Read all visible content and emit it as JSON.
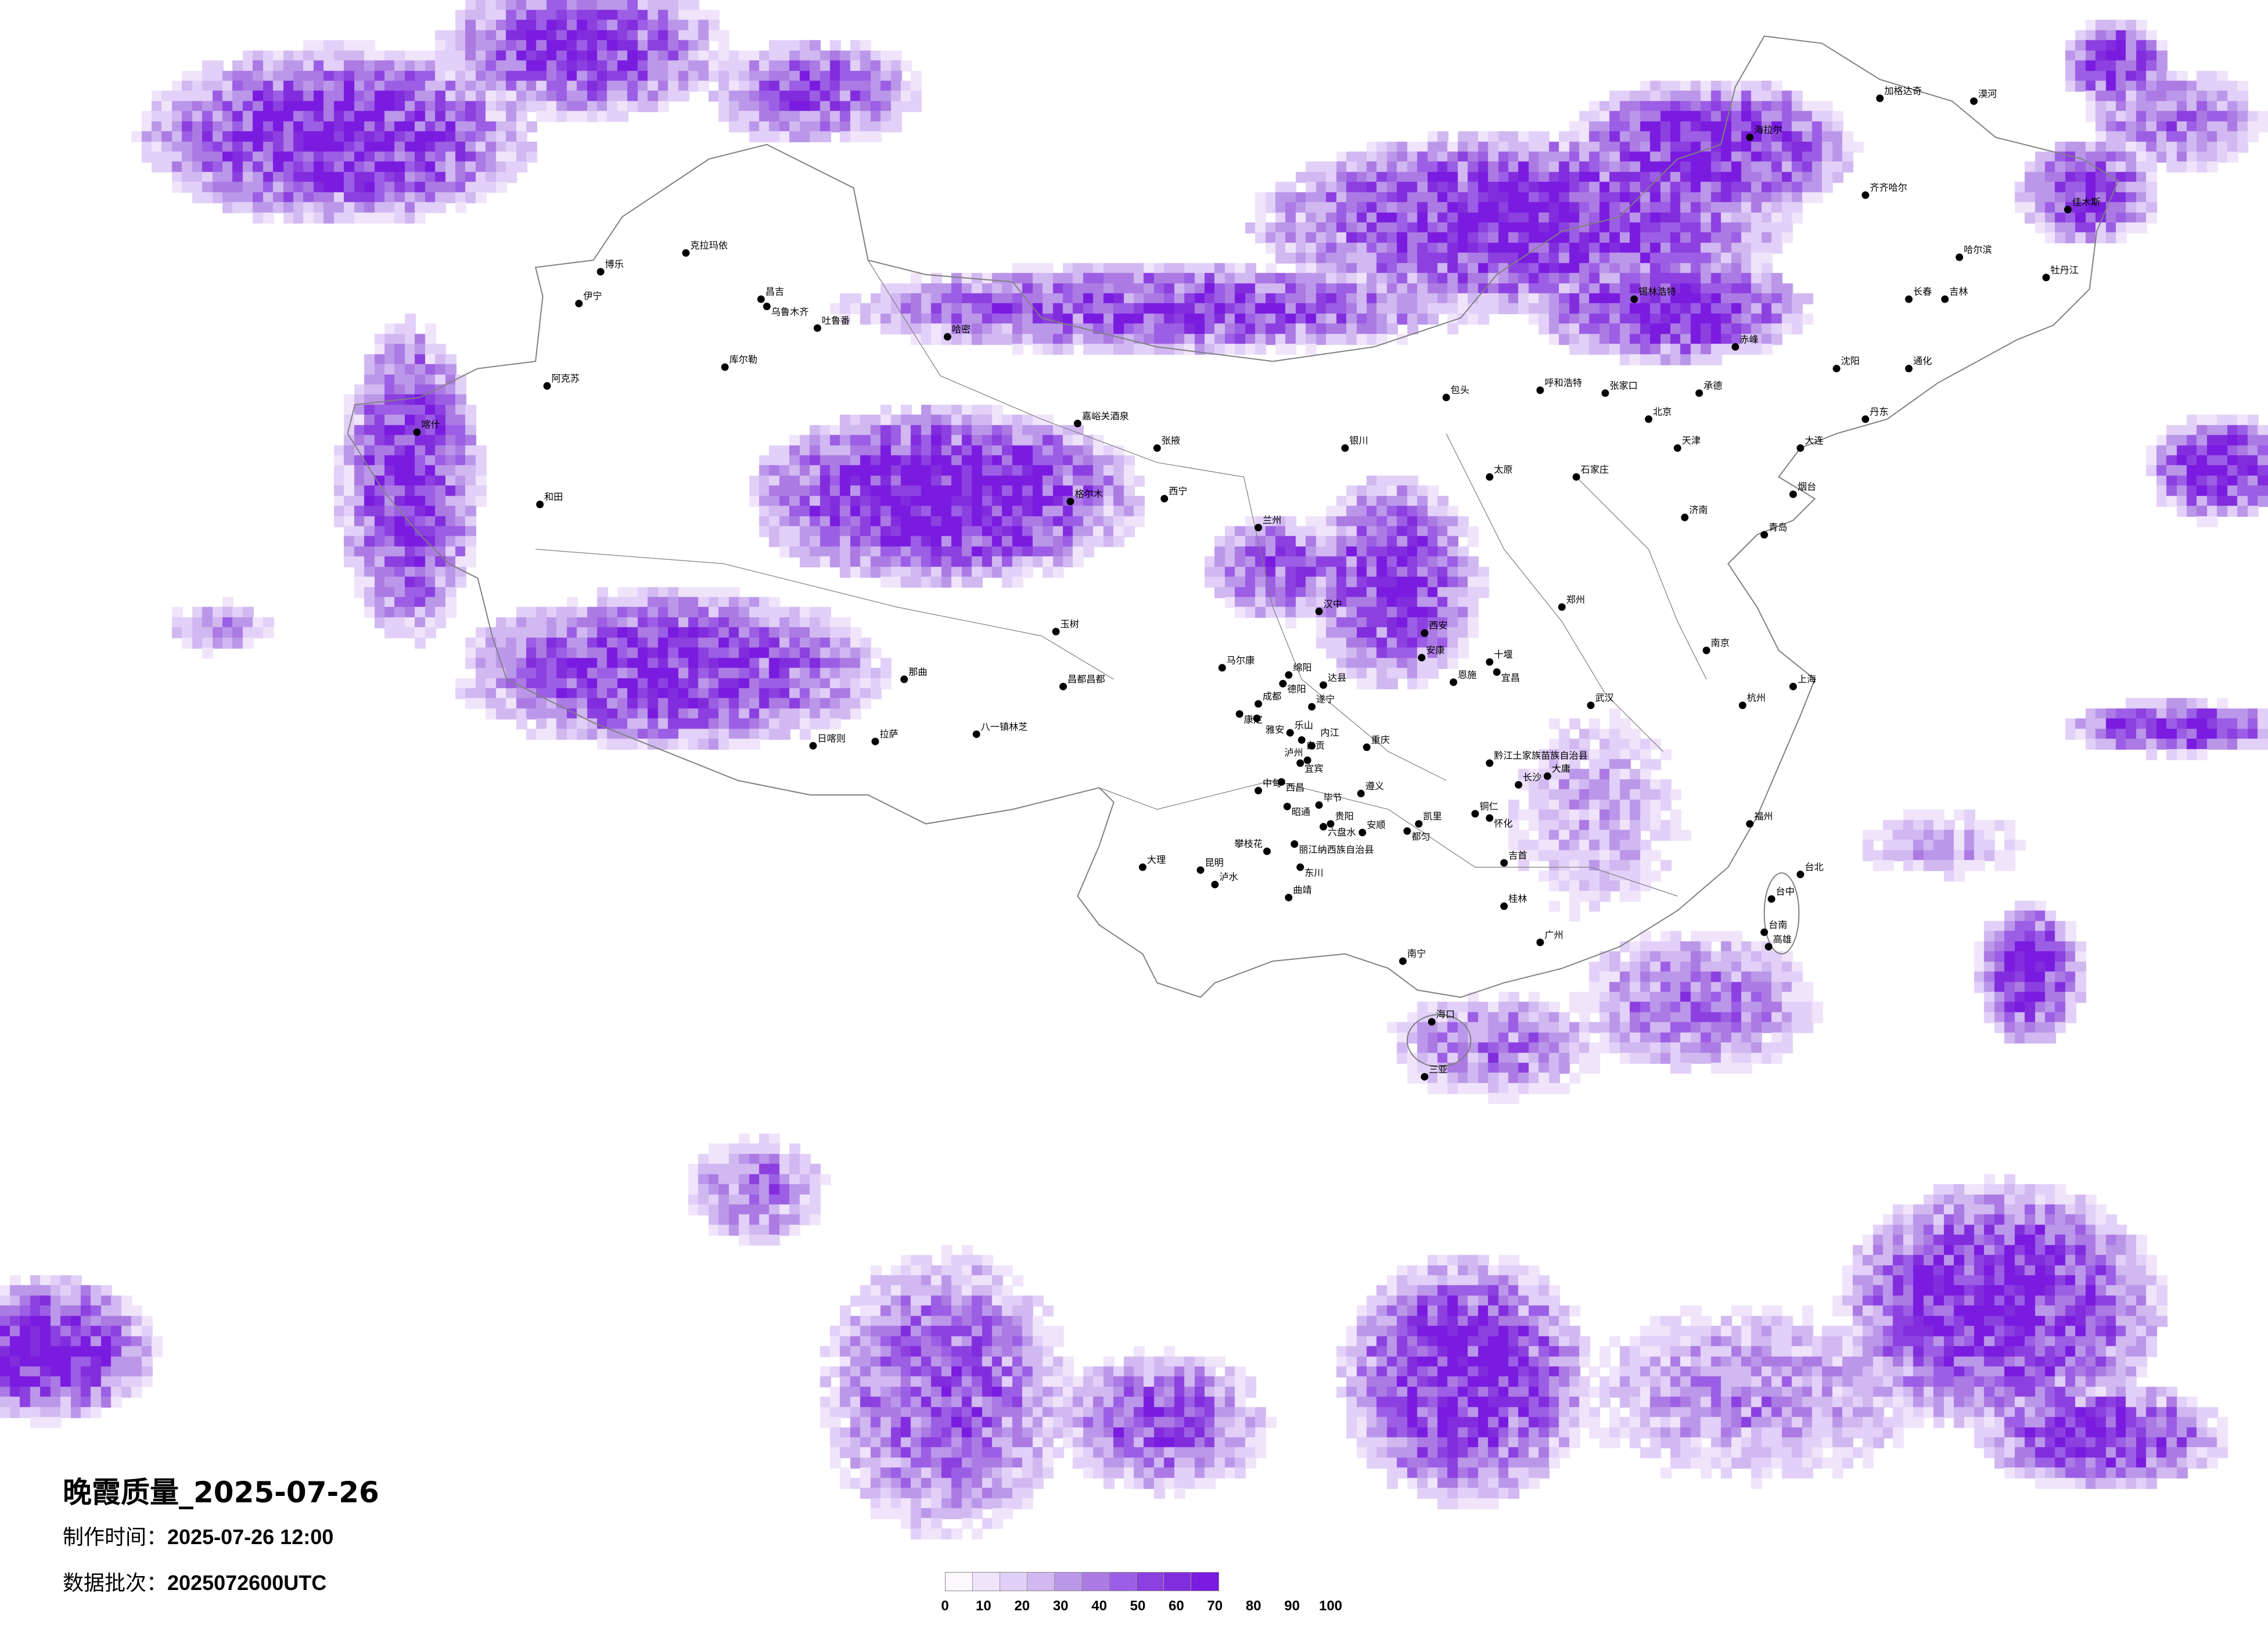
{
  "title": "晚霞质量_2025-07-26",
  "made_time": {
    "label": "制作时间：",
    "value": "2025-07-26 12:00"
  },
  "data_batch": {
    "label": "数据批次：",
    "value": "2025072600UTC"
  },
  "colorbar": {
    "ticks": [
      "0",
      "10",
      "20",
      "30",
      "40",
      "50",
      "60",
      "70",
      "80",
      "90",
      "100"
    ],
    "colors": [
      "#fdf8fe",
      "#f0e4fb",
      "#e2d0f8",
      "#d1b8f0",
      "#bb97ea",
      "#ac7ae3",
      "#9c5ee5",
      "#8c40e0",
      "#822ddd",
      "#7a1be0"
    ]
  },
  "colors": {
    "border": "#808080",
    "city_dot": "#000000"
  },
  "cities": [
    "克拉玛依",
    "博乐",
    "伊宁",
    "昌吉",
    "乌鲁木齐",
    "吐鲁番",
    "哈密",
    "库尔勒",
    "阿克苏",
    "喀什",
    "和田",
    "嘉峪关酒泉",
    "张掖",
    "西宁",
    "兰州",
    "格尔木",
    "玉树",
    "那曲",
    "拉萨",
    "日喀则",
    "八一镇林芝",
    "昌都昌都",
    "马尔康",
    "成都",
    "重庆",
    "贵阳",
    "昆明",
    "大理",
    "南宁",
    "海口",
    "三亚",
    "广州",
    "长沙",
    "武汉",
    "西安",
    "太原",
    "北京",
    "天津",
    "石家庄",
    "呼和浩特",
    "包头",
    "银川",
    "郑州",
    "济南",
    "南京",
    "上海",
    "杭州",
    "福州",
    "台北",
    "台中",
    "台南",
    "高雄",
    "沈阳",
    "长春",
    "哈尔滨",
    "齐齐哈尔",
    "海拉尔",
    "漠河",
    "加格达奇",
    "锡林浩特",
    "大连",
    "青岛",
    "烟台",
    "牡丹江",
    "佳木斯",
    "吉林",
    "通化",
    "丹东",
    "张家口",
    "承德",
    "赤峰",
    "汉中",
    "安康",
    "十堰",
    "绵阳",
    "德阳",
    "达县",
    "遂宁",
    "康定",
    "雅安",
    "乐山",
    "自贡",
    "内江",
    "宜宾",
    "泸州",
    "西昌",
    "中甸",
    "遵义",
    "毕节",
    "昭通",
    "六盘水",
    "安顺",
    "凯里",
    "都匀",
    "铜仁",
    "怀化",
    "吉首",
    "恩施",
    "宜昌",
    "丽江纳西族自治县",
    "攀枝花",
    "东川",
    "泸水",
    "曲靖",
    "桂林",
    "黔江土家族苗族自治县",
    "大庸"
  ]
}
